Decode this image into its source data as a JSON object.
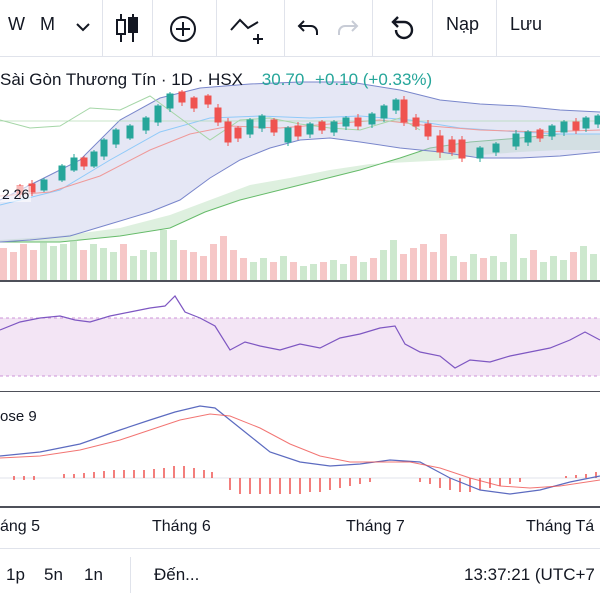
{
  "toolbar": {
    "interval_w": "W",
    "interval_m": "M",
    "save_label": "Lưu",
    "load_label": "Nạp"
  },
  "legend": {
    "symbol": "Sài Gòn Thương Tín · 1D · HSX",
    "value": "30.70",
    "change": "+0.10 (+0.33%)"
  },
  "price_box": "2 26",
  "macd_label": "ose 9",
  "x_axis": [
    "áng 5",
    "Tháng 6",
    "Tháng 7",
    "Tháng Tá"
  ],
  "footer": {
    "range_1p": "1p",
    "range_5n": "5n",
    "range_1n": "1n",
    "goto_label": "Đến...",
    "clock": "13:37:21 (UTC+7"
  },
  "colors": {
    "up": "#26a69a",
    "down": "#ef5350",
    "rsi_band": "#f3e5f5",
    "bb": "#9fa8da"
  }
}
